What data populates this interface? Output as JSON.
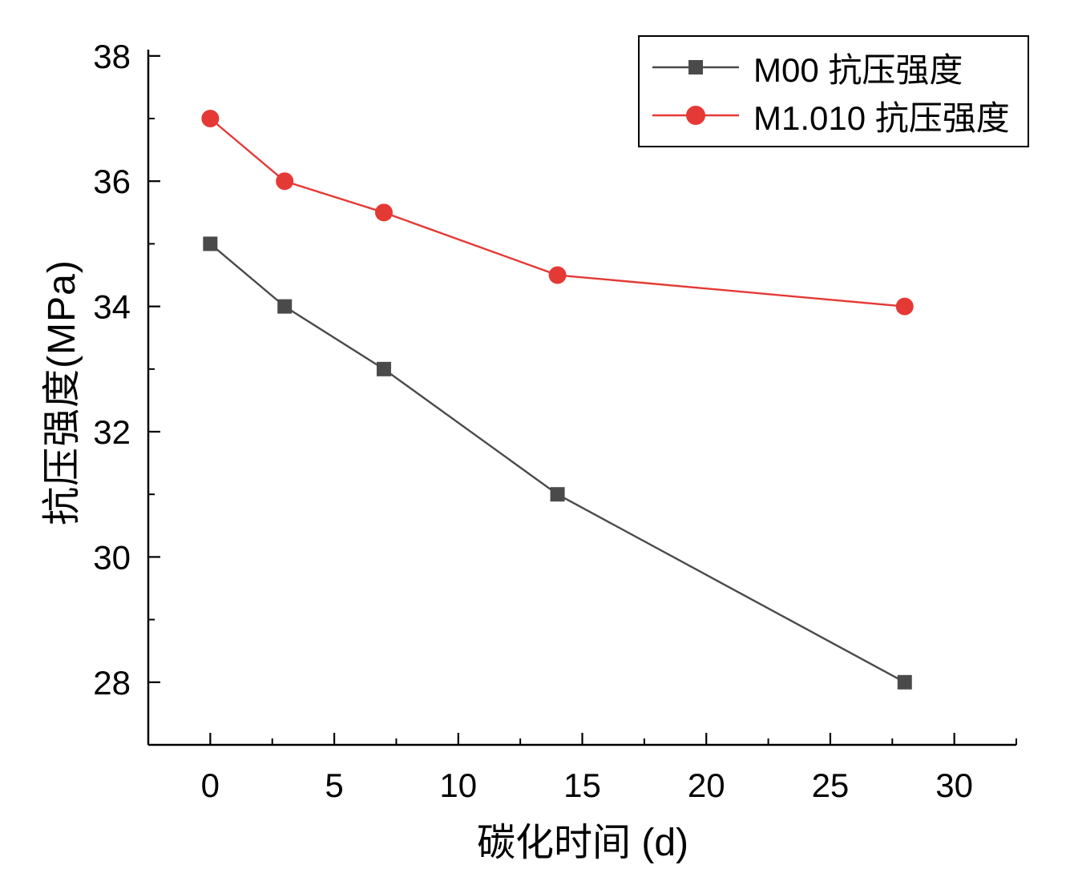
{
  "chart_data": {
    "type": "line",
    "title": "",
    "xlabel": "碳化时间 (d)",
    "ylabel": "抗压强度(MPa)",
    "x": [
      0,
      3,
      7,
      14,
      28
    ],
    "series": [
      {
        "name": "M00 抗压强度",
        "values": [
          35,
          34,
          33,
          31,
          28
        ],
        "color": "#4a4a4a",
        "marker": "square"
      },
      {
        "name": "M1.010 抗压强度",
        "values": [
          37,
          36,
          35.5,
          34.5,
          34
        ],
        "color": "#e53935",
        "marker": "circle"
      }
    ],
    "xlim": [
      -2.5,
      32.5
    ],
    "ylim": [
      27,
      38.1
    ],
    "xticks": [
      0,
      5,
      10,
      15,
      20,
      25,
      30
    ],
    "yticks": [
      28,
      30,
      32,
      34,
      36,
      38
    ],
    "x_minor_step": 2.5,
    "y_minor_step": 1,
    "grid": false,
    "legend_position": "top-right",
    "axis_color": "#000000",
    "background_color": "#ffffff"
  }
}
